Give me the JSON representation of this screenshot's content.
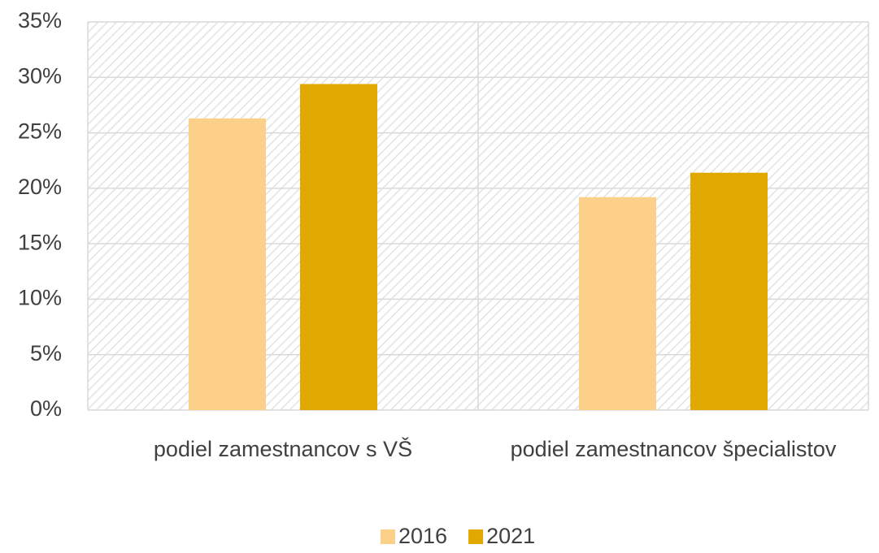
{
  "chart_data": {
    "type": "bar",
    "categories": [
      "podiel zamestnancov s VŠ",
      "podiel zamestnancov špecialistov"
    ],
    "series": [
      {
        "name": "2016",
        "color": "#fdd08a",
        "values": [
          26.3,
          19.2
        ]
      },
      {
        "name": "2021",
        "color": "#e0a800",
        "values": [
          29.4,
          21.4
        ]
      }
    ],
    "ylim": [
      0,
      35
    ],
    "yticks": [
      {
        "value": 0,
        "label": "0%"
      },
      {
        "value": 5,
        "label": "5%"
      },
      {
        "value": 10,
        "label": "10%"
      },
      {
        "value": 15,
        "label": "15%"
      },
      {
        "value": 20,
        "label": "20%"
      },
      {
        "value": 25,
        "label": "25%"
      },
      {
        "value": 30,
        "label": "30%"
      },
      {
        "value": 35,
        "label": "35%"
      }
    ],
    "grid": true,
    "legend": "bottom"
  }
}
